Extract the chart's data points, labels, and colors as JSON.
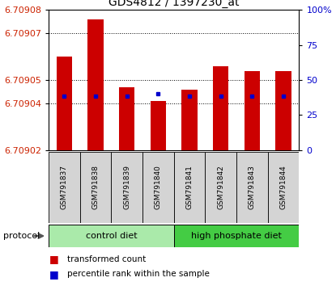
{
  "title": "GDS4812 / 1397230_at",
  "samples": [
    "GSM791837",
    "GSM791838",
    "GSM791839",
    "GSM791840",
    "GSM791841",
    "GSM791842",
    "GSM791843",
    "GSM791844"
  ],
  "bar_tops": [
    6.70906,
    6.709076,
    6.709047,
    6.709041,
    6.709046,
    6.709056,
    6.709054,
    6.709054
  ],
  "bar_bottom": 6.70902,
  "percentile_values": [
    6.709043,
    6.709043,
    6.709043,
    6.709044,
    6.709043,
    6.709043,
    6.709043,
    6.709043
  ],
  "ylim_left": [
    6.70902,
    6.70908
  ],
  "ylim_right": [
    0,
    100
  ],
  "yticks_left": [
    6.70902,
    6.70904,
    6.70905,
    6.70907,
    6.70908
  ],
  "yticks_right": [
    0,
    25,
    50,
    75,
    100
  ],
  "ytick_labels_right": [
    "0",
    "25",
    "50",
    "75",
    "100%"
  ],
  "grid_yticks": [
    6.70904,
    6.70905,
    6.70907
  ],
  "bar_color": "#cc0000",
  "blue_color": "#0000cc",
  "groups": [
    {
      "label": "control diet",
      "indices": [
        0,
        1,
        2,
        3
      ],
      "color": "#aaeaaa"
    },
    {
      "label": "high phosphate diet",
      "indices": [
        4,
        5,
        6,
        7
      ],
      "color": "#44cc44"
    }
  ],
  "protocol_label": "protocol",
  "legend_items": [
    {
      "color": "#cc0000",
      "label": "transformed count"
    },
    {
      "color": "#0000cc",
      "label": "percentile rank within the sample"
    }
  ],
  "title_fontsize": 10,
  "tick_fontsize": 8,
  "sample_fontsize": 6.5,
  "bar_width": 0.5,
  "left_label_color": "#cc2200",
  "right_label_color": "#0000cc",
  "bg_color": "#ffffff"
}
